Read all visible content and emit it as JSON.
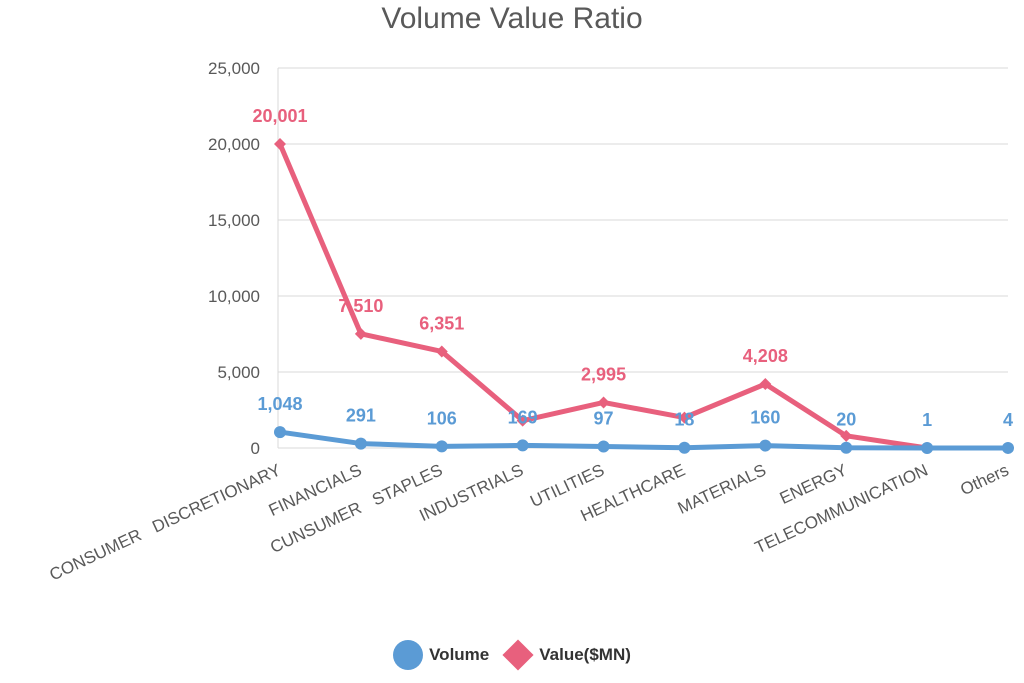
{
  "chart_data": {
    "type": "line",
    "title": "Volume Value Ratio",
    "xlabel": "",
    "ylabel": "",
    "ylim": [
      0,
      25000
    ],
    "yticks": [
      "0",
      "5,000",
      "10,000",
      "15,000",
      "20,000",
      "25,000"
    ],
    "ytick_values": [
      0,
      5000,
      10000,
      15000,
      20000,
      25000
    ],
    "grid": true,
    "legend_position": "bottom",
    "categories": [
      "CONSUMER   DISCRETIONARY",
      "FINANCIALS",
      "CUNSUMER   STAPLES",
      "INDUSTRIALS",
      "UTILITIES",
      "HEALTHCARE",
      "MATERIALS",
      "ENERGY",
      "TELECOMMUNICATION",
      "Others"
    ],
    "series": [
      {
        "name": "Volume",
        "color": "#5b9bd5",
        "marker": "circle",
        "values": [
          1048,
          291,
          106,
          169,
          97,
          18,
          160,
          20,
          1,
          4
        ],
        "labels": [
          "1,048",
          "291",
          "106",
          "169",
          "97",
          "18",
          "160",
          "20",
          "1",
          "4"
        ]
      },
      {
        "name": "Value($MN)",
        "color": "#e8607d",
        "marker": "diamond",
        "values": [
          20001,
          7510,
          6351,
          1800,
          2995,
          2000,
          4208,
          800,
          0,
          0
        ],
        "labels": [
          "20,001",
          "7,510",
          "6,351",
          "",
          "2,995",
          "",
          "4,208",
          "",
          "",
          ""
        ]
      }
    ]
  }
}
